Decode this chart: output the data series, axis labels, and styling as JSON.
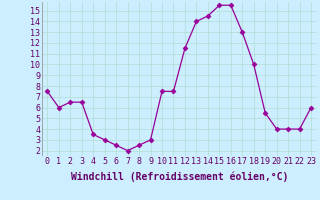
{
  "x": [
    0,
    1,
    2,
    3,
    4,
    5,
    6,
    7,
    8,
    9,
    10,
    11,
    12,
    13,
    14,
    15,
    16,
    17,
    18,
    19,
    20,
    21,
    22,
    23
  ],
  "y": [
    7.5,
    6.0,
    6.5,
    6.5,
    3.5,
    3.0,
    2.5,
    2.0,
    2.5,
    3.0,
    7.5,
    7.5,
    11.5,
    14.0,
    14.5,
    15.5,
    15.5,
    13.0,
    10.0,
    5.5,
    4.0,
    4.0,
    4.0,
    6.0
  ],
  "line_color": "#990099",
  "marker": "D",
  "marker_size": 2.5,
  "bg_color": "#cceeff",
  "grid_color": "#aaddcc",
  "xlabel": "Windchill (Refroidissement éolien,°C)",
  "xlabel_fontsize": 7,
  "tick_fontsize": 6,
  "xlim": [
    -0.5,
    23.5
  ],
  "ylim": [
    1.5,
    15.8
  ],
  "yticks": [
    2,
    3,
    4,
    5,
    6,
    7,
    8,
    9,
    10,
    11,
    12,
    13,
    14,
    15
  ],
  "xticks": [
    0,
    1,
    2,
    3,
    4,
    5,
    6,
    7,
    8,
    9,
    10,
    11,
    12,
    13,
    14,
    15,
    16,
    17,
    18,
    19,
    20,
    21,
    22,
    23
  ]
}
